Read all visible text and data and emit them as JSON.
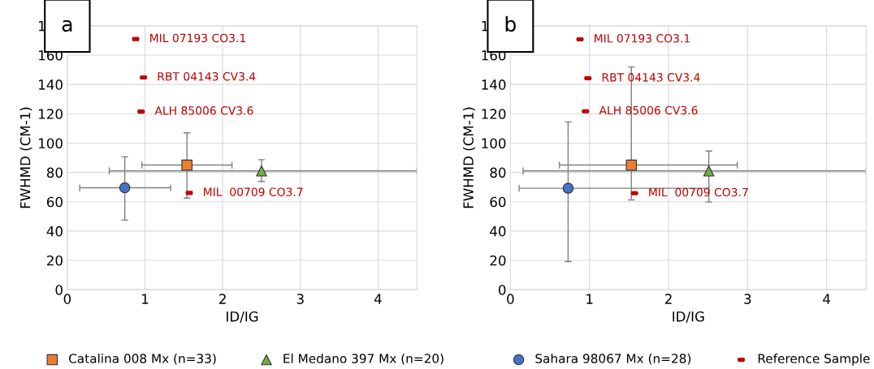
{
  "chart_data": [
    {
      "type": "scatter",
      "title": "a",
      "xlabel": "ID/IG",
      "ylabel": "FWHMD (CM-1)",
      "xlim": [
        0,
        4.5
      ],
      "xticks": [
        0,
        1,
        2,
        3,
        4
      ],
      "ylim": [
        0,
        180
      ],
      "yticks": [
        0,
        20,
        40,
        60,
        80,
        100,
        120,
        140,
        160,
        180
      ],
      "grid": true,
      "legend": "bottom",
      "series": [
        {
          "name": "Catalina 008 Mx (n=33)",
          "color": "#ed7d31",
          "marker": "square",
          "x": [
            1.54
          ],
          "values": [
            85
          ],
          "errors": [
            [
              62.5,
              107
            ]
          ],
          "xerrors": [
            [
              0.96,
              2.12
            ]
          ]
        },
        {
          "name": "El Medano 397 Mx (n=20)",
          "color": "#70ad47",
          "marker": "triangle",
          "x": [
            2.5
          ],
          "values": [
            81
          ],
          "errors": [
            [
              73.8,
              88.7
            ]
          ],
          "xerrors": [
            [
              0.54,
              4.5
            ]
          ]
        },
        {
          "color": "#4472c4",
          "marker": "circle",
          "x": [
            0.74
          ],
          "values": [
            69.5
          ],
          "errors": [
            [
              47.5,
              90.6
            ]
          ],
          "xerrors": [
            [
              0.16,
              1.33
            ]
          ]
        },
        {
          "color": "#c00000",
          "x": [
            0.88,
            0.98,
            0.95,
            1.57
          ],
          "values": [
            171,
            144.8,
            121.5,
            66
          ]
        }
      ],
      "annotations": [
        {
          "text": "MIL 07193 CO3.1",
          "x": 0.88,
          "y": 171
        },
        {
          "text": "RBT 04143 CV3.4",
          "x": 0.98,
          "y": 144.8
        },
        {
          "text": "ALH 85006 CV3.6",
          "x": 0.95,
          "y": 121.5
        },
        {
          "text": "MIL  00709 CO3.7",
          "x": 1.57,
          "y": 66
        }
      ]
    },
    {
      "type": "scatter",
      "title": "b",
      "xlabel": "ID/IG",
      "ylabel": "FWHMD (CM-1)",
      "xlim": [
        0,
        4.5
      ],
      "xticks": [
        0,
        1,
        2,
        3,
        4
      ],
      "ylim": [
        0,
        180
      ],
      "yticks": [
        0,
        20,
        40,
        60,
        80,
        100,
        120,
        140,
        160,
        180
      ],
      "grid": true,
      "legend": "bottom",
      "series": [
        {
          "color": "#ed7d31",
          "marker": "square",
          "x": [
            1.53
          ],
          "values": [
            85
          ],
          "errors": [
            [
              61.2,
              151.9
            ]
          ],
          "xerrors": [
            [
              0.62,
              2.87
            ]
          ]
        },
        {
          "color": "#70ad47",
          "marker": "triangle",
          "x": [
            2.51
          ],
          "values": [
            81
          ],
          "errors": [
            [
              59.8,
              94.6
            ]
          ],
          "xerrors": [
            [
              0.16,
              4.5
            ]
          ]
        },
        {
          "name": "Sahara 98067 Mx (n=28)",
          "color": "#4472c4",
          "marker": "circle",
          "x": [
            0.73
          ],
          "values": [
            69.2
          ],
          "errors": [
            [
              19.2,
              114.4
            ]
          ],
          "xerrors": [
            [
              0.11,
              2.51
            ]
          ]
        },
        {
          "name": "Reference Sample",
          "color": "#c00000",
          "x": [
            0.88,
            0.98,
            0.95,
            1.57
          ],
          "values": [
            170.8,
            144.2,
            121.7,
            65.8
          ]
        }
      ],
      "annotations": [
        {
          "text": "MIL 07193 CO3.1",
          "x": 0.88,
          "y": 170.8
        },
        {
          "text": "RBT 04143 CV3.4",
          "x": 0.98,
          "y": 144.2
        },
        {
          "text": "ALH 85006 CV3.6",
          "x": 0.95,
          "y": 121.7
        },
        {
          "text": "MIL  00709 CO3.7",
          "x": 1.57,
          "y": 65.8
        }
      ]
    }
  ]
}
